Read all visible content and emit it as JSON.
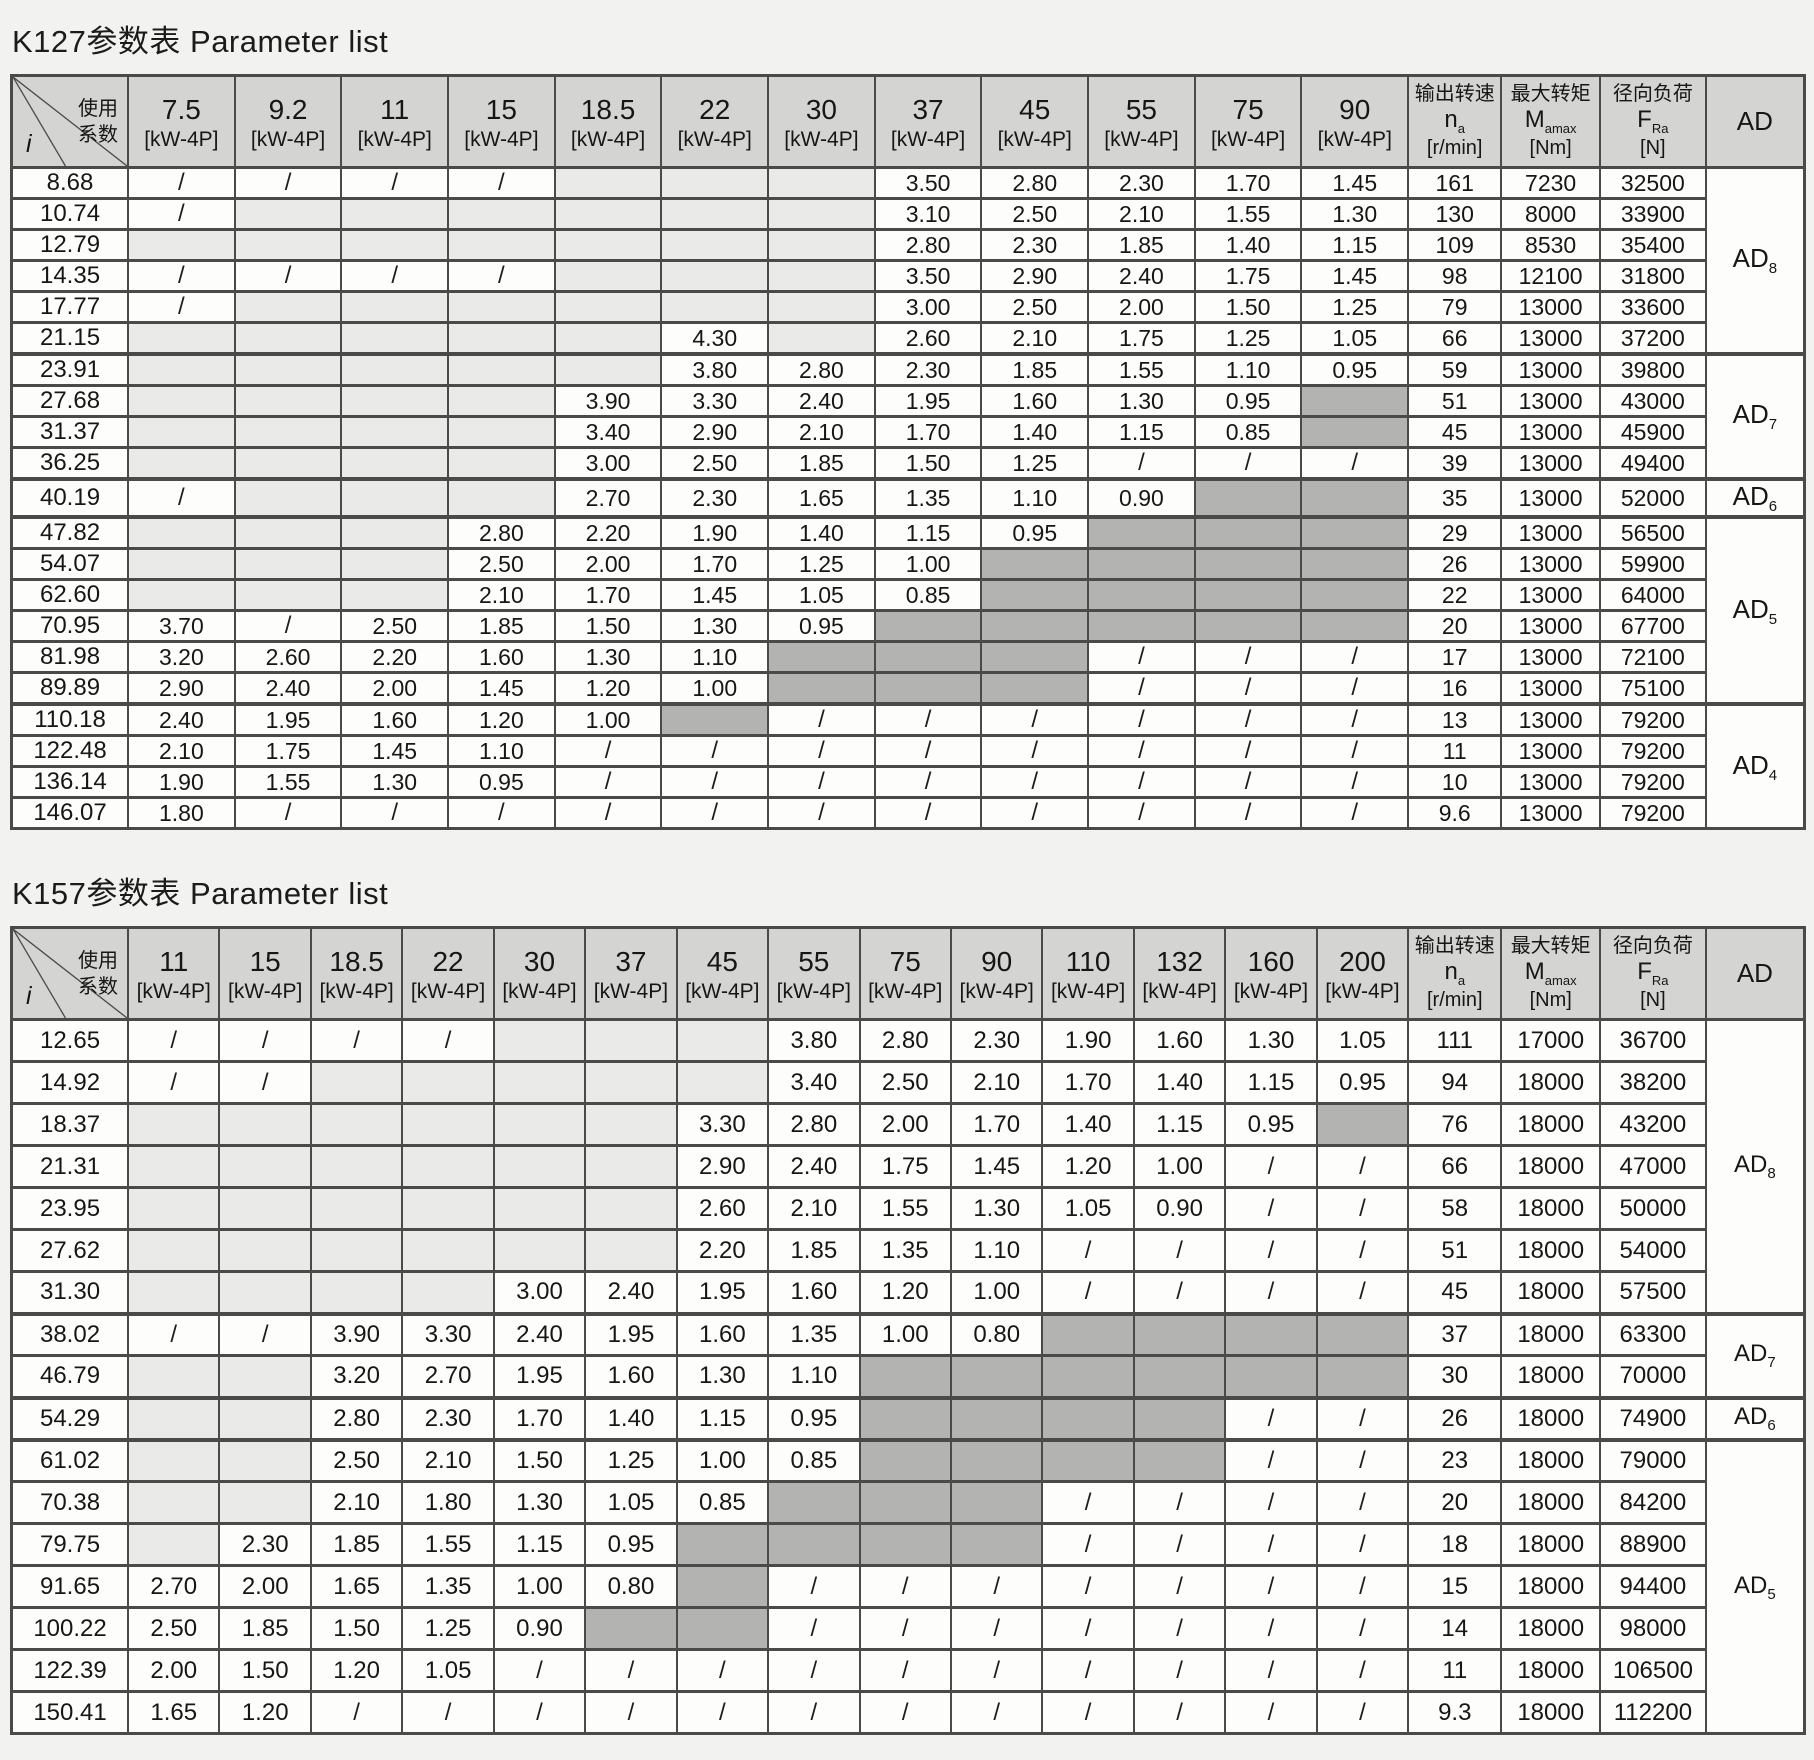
{
  "page": {
    "background": "#f2f2f0"
  },
  "colors": {
    "header_bg": "#d4d4d2",
    "cell_bg": "#fdfdfc",
    "empty_bg": "#eaeae8",
    "blocked_bg": "#b3b3b1",
    "border": "#4a4a48",
    "text": "#161616"
  },
  "tables": [
    {
      "id": "K127",
      "title": "K127参数表 Parameter list",
      "corner": {
        "row_label": "i",
        "col_label_lines": [
          "使用",
          "系数"
        ]
      },
      "power_unit": "[kW-4P]",
      "power_columns": [
        "7.5",
        "9.2",
        "11",
        "15",
        "18.5",
        "22",
        "30",
        "37",
        "45",
        "55",
        "75",
        "90"
      ],
      "result_columns": [
        {
          "key": "na",
          "label": "输出转速",
          "symbol": "n",
          "symbol_sub": "a",
          "unit": "[r/min]"
        },
        {
          "key": "m",
          "label": "最大转矩",
          "symbol": "M",
          "symbol_sub": "amax",
          "unit": "[Nm]"
        },
        {
          "key": "f",
          "label": "径向负荷",
          "symbol": "F",
          "symbol_sub": "Ra",
          "unit": "[N]"
        }
      ],
      "ad_header": "AD",
      "ad_groups": [
        {
          "sub": "8",
          "span": 6
        },
        {
          "sub": "7",
          "span": 4
        },
        {
          "sub": "6",
          "span": 1
        },
        {
          "sub": "5",
          "span": 6
        },
        {
          "sub": "4",
          "span": 4
        }
      ],
      "rows": [
        {
          "i": "8.68",
          "p": [
            "/",
            "/",
            "/",
            "/",
            "",
            "",
            "",
            "3.50",
            "2.80",
            "2.30",
            "1.70",
            "1.45"
          ],
          "na": "161",
          "m": "7230",
          "f": "32500"
        },
        {
          "i": "10.74",
          "p": [
            "/",
            "",
            "",
            "",
            "",
            "",
            "",
            "3.10",
            "2.50",
            "2.10",
            "1.55",
            "1.30"
          ],
          "na": "130",
          "m": "8000",
          "f": "33900"
        },
        {
          "i": "12.79",
          "p": [
            "",
            "",
            "",
            "",
            "",
            "",
            "",
            "2.80",
            "2.30",
            "1.85",
            "1.40",
            "1.15"
          ],
          "na": "109",
          "m": "8530",
          "f": "35400"
        },
        {
          "i": "14.35",
          "p": [
            "/",
            "/",
            "/",
            "/",
            "",
            "",
            "",
            "3.50",
            "2.90",
            "2.40",
            "1.75",
            "1.45"
          ],
          "na": "98",
          "m": "12100",
          "f": "31800"
        },
        {
          "i": "17.77",
          "p": [
            "/",
            "",
            "",
            "",
            "",
            "",
            "",
            "3.00",
            "2.50",
            "2.00",
            "1.50",
            "1.25"
          ],
          "na": "79",
          "m": "13000",
          "f": "33600"
        },
        {
          "i": "21.15",
          "p": [
            "",
            "",
            "",
            "",
            "",
            "4.30",
            "",
            "2.60",
            "2.10",
            "1.75",
            "1.25",
            "1.05"
          ],
          "na": "66",
          "m": "13000",
          "f": "37200"
        },
        {
          "i": "23.91",
          "p": [
            "",
            "",
            "",
            "",
            "",
            "3.80",
            "2.80",
            "2.30",
            "1.85",
            "1.55",
            "1.10",
            "0.95"
          ],
          "na": "59",
          "m": "13000",
          "f": "39800"
        },
        {
          "i": "27.68",
          "p": [
            "",
            "",
            "",
            "",
            "3.90",
            "3.30",
            "2.40",
            "1.95",
            "1.60",
            "1.30",
            "0.95",
            "#"
          ],
          "na": "51",
          "m": "13000",
          "f": "43000"
        },
        {
          "i": "31.37",
          "p": [
            "",
            "",
            "",
            "",
            "3.40",
            "2.90",
            "2.10",
            "1.70",
            "1.40",
            "1.15",
            "0.85",
            "#"
          ],
          "na": "45",
          "m": "13000",
          "f": "45900"
        },
        {
          "i": "36.25",
          "p": [
            "",
            "",
            "",
            "",
            "3.00",
            "2.50",
            "1.85",
            "1.50",
            "1.25",
            "/",
            "/",
            "/"
          ],
          "na": "39",
          "m": "13000",
          "f": "49400"
        },
        {
          "i": "40.19",
          "p": [
            "/",
            "",
            "",
            "",
            "2.70",
            "2.30",
            "1.65",
            "1.35",
            "1.10",
            "0.90",
            "#",
            "#"
          ],
          "na": "35",
          "m": "13000",
          "f": "52000"
        },
        {
          "i": "47.82",
          "p": [
            "",
            "",
            "",
            "2.80",
            "2.20",
            "1.90",
            "1.40",
            "1.15",
            "0.95",
            "#",
            "#",
            "#"
          ],
          "na": "29",
          "m": "13000",
          "f": "56500"
        },
        {
          "i": "54.07",
          "p": [
            "",
            "",
            "",
            "2.50",
            "2.00",
            "1.70",
            "1.25",
            "1.00",
            "#",
            "#",
            "#",
            "#"
          ],
          "na": "26",
          "m": "13000",
          "f": "59900"
        },
        {
          "i": "62.60",
          "p": [
            "",
            "",
            "",
            "2.10",
            "1.70",
            "1.45",
            "1.05",
            "0.85",
            "#",
            "#",
            "#",
            "#"
          ],
          "na": "22",
          "m": "13000",
          "f": "64000"
        },
        {
          "i": "70.95",
          "p": [
            "3.70",
            "/",
            "2.50",
            "1.85",
            "1.50",
            "1.30",
            "0.95",
            "#",
            "#",
            "#",
            "#",
            "#"
          ],
          "na": "20",
          "m": "13000",
          "f": "67700"
        },
        {
          "i": "81.98",
          "p": [
            "3.20",
            "2.60",
            "2.20",
            "1.60",
            "1.30",
            "1.10",
            "#",
            "#",
            "#",
            "/",
            "/",
            "/"
          ],
          "na": "17",
          "m": "13000",
          "f": "72100"
        },
        {
          "i": "89.89",
          "p": [
            "2.90",
            "2.40",
            "2.00",
            "1.45",
            "1.20",
            "1.00",
            "#",
            "#",
            "#",
            "/",
            "/",
            "/"
          ],
          "na": "16",
          "m": "13000",
          "f": "75100"
        },
        {
          "i": "110.18",
          "p": [
            "2.40",
            "1.95",
            "1.60",
            "1.20",
            "1.00",
            "#",
            "/",
            "/",
            "/",
            "/",
            "/",
            "/"
          ],
          "na": "13",
          "m": "13000",
          "f": "79200"
        },
        {
          "i": "122.48",
          "p": [
            "2.10",
            "1.75",
            "1.45",
            "1.10",
            "/",
            "/",
            "/",
            "/",
            "/",
            "/",
            "/",
            "/"
          ],
          "na": "11",
          "m": "13000",
          "f": "79200"
        },
        {
          "i": "136.14",
          "p": [
            "1.90",
            "1.55",
            "1.30",
            "0.95",
            "/",
            "/",
            "/",
            "/",
            "/",
            "/",
            "/",
            "/"
          ],
          "na": "10",
          "m": "13000",
          "f": "79200"
        },
        {
          "i": "146.07",
          "p": [
            "1.80",
            "/",
            "/",
            "/",
            "/",
            "/",
            "/",
            "/",
            "/",
            "/",
            "/",
            "/"
          ],
          "na": "9.6",
          "m": "13000",
          "f": "79200"
        }
      ]
    },
    {
      "id": "K157",
      "title": "K157参数表 Parameter list",
      "corner": {
        "row_label": "i",
        "col_label_lines": [
          "使用",
          "系数"
        ]
      },
      "power_unit": "[kW-4P]",
      "power_columns": [
        "11",
        "15",
        "18.5",
        "22",
        "30",
        "37",
        "45",
        "55",
        "75",
        "90",
        "110",
        "132",
        "160",
        "200"
      ],
      "result_columns": [
        {
          "key": "na",
          "label": "输出转速",
          "symbol": "n",
          "symbol_sub": "a",
          "unit": "[r/min]"
        },
        {
          "key": "m",
          "label": "最大转矩",
          "symbol": "M",
          "symbol_sub": "amax",
          "unit": "[Nm]"
        },
        {
          "key": "f",
          "label": "径向负荷",
          "symbol": "F",
          "symbol_sub": "Ra",
          "unit": "[N]"
        }
      ],
      "ad_header": "AD",
      "ad_groups": [
        {
          "sub": "8",
          "span": 7
        },
        {
          "sub": "7",
          "span": 2
        },
        {
          "sub": "6",
          "span": 1
        },
        {
          "sub": "5",
          "span": 7
        }
      ],
      "rows": [
        {
          "i": "12.65",
          "p": [
            "/",
            "/",
            "/",
            "/",
            "",
            "",
            "",
            "3.80",
            "2.80",
            "2.30",
            "1.90",
            "1.60",
            "1.30",
            "1.05"
          ],
          "na": "111",
          "m": "17000",
          "f": "36700"
        },
        {
          "i": "14.92",
          "p": [
            "/",
            "/",
            "",
            "",
            "",
            "",
            "",
            "3.40",
            "2.50",
            "2.10",
            "1.70",
            "1.40",
            "1.15",
            "0.95"
          ],
          "na": "94",
          "m": "18000",
          "f": "38200"
        },
        {
          "i": "18.37",
          "p": [
            "",
            "",
            "",
            "",
            "",
            "",
            "3.30",
            "2.80",
            "2.00",
            "1.70",
            "1.40",
            "1.15",
            "0.95",
            "#"
          ],
          "na": "76",
          "m": "18000",
          "f": "43200"
        },
        {
          "i": "21.31",
          "p": [
            "",
            "",
            "",
            "",
            "",
            "",
            "2.90",
            "2.40",
            "1.75",
            "1.45",
            "1.20",
            "1.00",
            "/",
            "/"
          ],
          "na": "66",
          "m": "18000",
          "f": "47000"
        },
        {
          "i": "23.95",
          "p": [
            "",
            "",
            "",
            "",
            "",
            "",
            "2.60",
            "2.10",
            "1.55",
            "1.30",
            "1.05",
            "0.90",
            "/",
            "/"
          ],
          "na": "58",
          "m": "18000",
          "f": "50000"
        },
        {
          "i": "27.62",
          "p": [
            "",
            "",
            "",
            "",
            "",
            "",
            "2.20",
            "1.85",
            "1.35",
            "1.10",
            "/",
            "/",
            "/",
            "/"
          ],
          "na": "51",
          "m": "18000",
          "f": "54000"
        },
        {
          "i": "31.30",
          "p": [
            "",
            "",
            "",
            "",
            "3.00",
            "2.40",
            "1.95",
            "1.60",
            "1.20",
            "1.00",
            "/",
            "/",
            "/",
            "/"
          ],
          "na": "45",
          "m": "18000",
          "f": "57500"
        },
        {
          "i": "38.02",
          "p": [
            "/",
            "/",
            "3.90",
            "3.30",
            "2.40",
            "1.95",
            "1.60",
            "1.35",
            "1.00",
            "0.80",
            "#",
            "#",
            "#",
            "#"
          ],
          "na": "37",
          "m": "18000",
          "f": "63300"
        },
        {
          "i": "46.79",
          "p": [
            "",
            "",
            "3.20",
            "2.70",
            "1.95",
            "1.60",
            "1.30",
            "1.10",
            "#",
            "#",
            "#",
            "#",
            "#",
            "#"
          ],
          "na": "30",
          "m": "18000",
          "f": "70000"
        },
        {
          "i": "54.29",
          "p": [
            "",
            "",
            "2.80",
            "2.30",
            "1.70",
            "1.40",
            "1.15",
            "0.95",
            "#",
            "#",
            "#",
            "#",
            "/",
            "/"
          ],
          "na": "26",
          "m": "18000",
          "f": "74900"
        },
        {
          "i": "61.02",
          "p": [
            "",
            "",
            "2.50",
            "2.10",
            "1.50",
            "1.25",
            "1.00",
            "0.85",
            "#",
            "#",
            "#",
            "#",
            "/",
            "/"
          ],
          "na": "23",
          "m": "18000",
          "f": "79000"
        },
        {
          "i": "70.38",
          "p": [
            "",
            "",
            "2.10",
            "1.80",
            "1.30",
            "1.05",
            "0.85",
            "#",
            "#",
            "#",
            "/",
            "/",
            "/",
            "/"
          ],
          "na": "20",
          "m": "18000",
          "f": "84200"
        },
        {
          "i": "79.75",
          "p": [
            "",
            "2.30",
            "1.85",
            "1.55",
            "1.15",
            "0.95",
            "#",
            "#",
            "#",
            "#",
            "/",
            "/",
            "/",
            "/"
          ],
          "na": "18",
          "m": "18000",
          "f": "88900"
        },
        {
          "i": "91.65",
          "p": [
            "2.70",
            "2.00",
            "1.65",
            "1.35",
            "1.00",
            "0.80",
            "#",
            "/",
            "/",
            "/",
            "/",
            "/",
            "/",
            "/"
          ],
          "na": "15",
          "m": "18000",
          "f": "94400"
        },
        {
          "i": "100.22",
          "p": [
            "2.50",
            "1.85",
            "1.50",
            "1.25",
            "0.90",
            "#",
            "#",
            "/",
            "/",
            "/",
            "/",
            "/",
            "/",
            "/"
          ],
          "na": "14",
          "m": "18000",
          "f": "98000"
        },
        {
          "i": "122.39",
          "p": [
            "2.00",
            "1.50",
            "1.20",
            "1.05",
            "/",
            "/",
            "/",
            "/",
            "/",
            "/",
            "/",
            "/",
            "/",
            "/"
          ],
          "na": "11",
          "m": "18000",
          "f": "106500"
        },
        {
          "i": "150.41",
          "p": [
            "1.65",
            "1.20",
            "/",
            "/",
            "/",
            "/",
            "/",
            "/",
            "/",
            "/",
            "/",
            "/",
            "/",
            "/"
          ],
          "na": "9.3",
          "m": "18000",
          "f": "112200"
        }
      ]
    }
  ]
}
